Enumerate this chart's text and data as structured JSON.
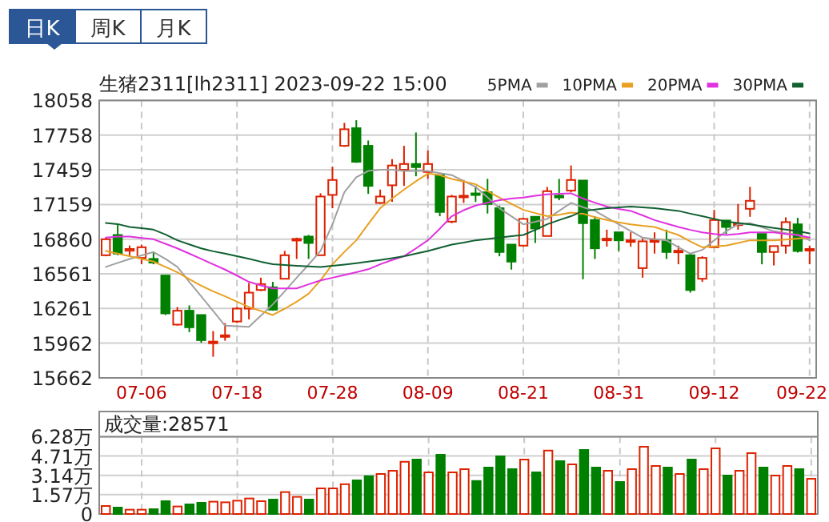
{
  "chart_data": [
    {
      "type": "candlestick",
      "title": "生猪2311[lh2311] 2023-09-22 15:00",
      "annotations": [
        "日K",
        "周K",
        "月K"
      ],
      "categories": [
        null,
        null,
        null,
        "07-06",
        null,
        null,
        null,
        null,
        null,
        null,
        null,
        "07-18",
        null,
        null,
        null,
        null,
        null,
        null,
        null,
        "07-28",
        null,
        null,
        null,
        null,
        null,
        null,
        null,
        "08-09",
        null,
        null,
        null,
        null,
        null,
        null,
        null,
        "08-21",
        null,
        null,
        null,
        null,
        null,
        null,
        null,
        "08-31",
        null,
        null,
        null,
        null,
        null,
        null,
        null,
        "09-12",
        null,
        null,
        null,
        null,
        null,
        null,
        null,
        "09-22"
      ],
      "ohlc": [
        [
          16721,
          16873,
          16712,
          16859
        ],
        [
          16896,
          16988,
          16721,
          16735
        ],
        [
          16760,
          16805,
          16720,
          16775
        ],
        [
          16698,
          16813,
          16643,
          16790
        ],
        [
          16689,
          16749,
          16643,
          16657
        ],
        [
          16546,
          16546,
          16205,
          16219
        ],
        [
          16122,
          16274,
          16113,
          16242
        ],
        [
          16242,
          16288,
          16057,
          16099
        ],
        [
          16205,
          16205,
          15965,
          15988
        ],
        [
          15965,
          16066,
          15845,
          15975
        ],
        [
          16020,
          16135,
          15983,
          16030
        ],
        [
          16149,
          16274,
          16136,
          16260
        ],
        [
          16260,
          16481,
          16168,
          16398
        ],
        [
          16421,
          16527,
          16412,
          16472
        ],
        [
          16444,
          16491,
          16242,
          16251
        ],
        [
          16518,
          16758,
          16518,
          16721
        ],
        [
          16850,
          16873,
          16689,
          16862
        ],
        [
          16882,
          16896,
          16689,
          16827
        ],
        [
          16721,
          17256,
          16721,
          17228
        ],
        [
          17242,
          17486,
          17127,
          17371
        ],
        [
          17666,
          17864,
          17657,
          17809
        ],
        [
          17818,
          17887,
          17519,
          17528
        ],
        [
          17666,
          17712,
          17251,
          17320
        ],
        [
          17173,
          17288,
          17164,
          17228
        ],
        [
          17325,
          17551,
          17182,
          17496
        ],
        [
          17459,
          17666,
          17320,
          17509
        ],
        [
          17509,
          17781,
          17403,
          17482
        ],
        [
          17440,
          17625,
          17380,
          17509
        ],
        [
          17413,
          17413,
          17058,
          17095
        ],
        [
          17011,
          17242,
          16998,
          17228
        ],
        [
          17225,
          17371,
          17173,
          17235
        ],
        [
          17255,
          17320,
          17182,
          17245
        ],
        [
          17265,
          17380,
          17081,
          17164
        ],
        [
          17127,
          17150,
          16712,
          16749
        ],
        [
          16813,
          16813,
          16597,
          16666
        ],
        [
          16804,
          17044,
          16795,
          17035
        ],
        [
          17053,
          17053,
          16827,
          16952
        ],
        [
          16887,
          17311,
          16887,
          17274
        ],
        [
          17235,
          17380,
          17196,
          17220
        ],
        [
          17279,
          17496,
          17265,
          17371
        ],
        [
          17366,
          17366,
          16514,
          16998
        ],
        [
          17025,
          17058,
          16689,
          16781
        ],
        [
          16855,
          16942,
          16795,
          16864
        ],
        [
          16919,
          16919,
          16758,
          16850
        ],
        [
          16840,
          16919,
          16795,
          16850
        ],
        [
          16610,
          16864,
          16527,
          16841
        ],
        [
          16840,
          16919,
          16735,
          16850
        ],
        [
          16850,
          16942,
          16689,
          16749
        ],
        [
          16750,
          16804,
          16643,
          16760
        ],
        [
          16721,
          16735,
          16398,
          16421
        ],
        [
          16518,
          16712,
          16491,
          16698
        ],
        [
          16790,
          17113,
          16790,
          17025
        ],
        [
          17021,
          17021,
          16905,
          16965
        ],
        [
          16985,
          17164,
          16942,
          16995
        ],
        [
          17122,
          17311,
          17053,
          17191
        ],
        [
          16905,
          16905,
          16643,
          16749
        ],
        [
          16749,
          16800,
          16633,
          16800
        ],
        [
          16804,
          17048,
          16735,
          17007
        ],
        [
          16988,
          17044,
          16744,
          16758
        ],
        [
          16765,
          16804,
          16643,
          16775
        ]
      ],
      "colors": [
        "#dd2200",
        "#008000",
        "#dd2200",
        "#dd2200",
        "#008000",
        "#008000",
        "#dd2200",
        "#008000",
        "#008000",
        "#dd2200",
        "#dd2200",
        "#dd2200",
        "#dd2200",
        "#dd2200",
        "#008000",
        "#dd2200",
        "#dd2200",
        "#008000",
        "#dd2200",
        "#dd2200",
        "#dd2200",
        "#008000",
        "#008000",
        "#dd2200",
        "#dd2200",
        "#dd2200",
        "#008000",
        "#dd2200",
        "#008000",
        "#dd2200",
        "#dd2200",
        "#008000",
        "#008000",
        "#008000",
        "#008000",
        "#dd2200",
        "#008000",
        "#dd2200",
        "#008000",
        "#dd2200",
        "#008000",
        "#008000",
        "#dd2200",
        "#008000",
        "#dd2200",
        "#dd2200",
        "#dd2200",
        "#008000",
        "#dd2200",
        "#008000",
        "#dd2200",
        "#dd2200",
        "#008000",
        "#dd2200",
        "#dd2200",
        "#008000",
        "#dd2200",
        "#dd2200",
        "#008000",
        "#dd2200"
      ],
      "series": [
        {
          "type": "line",
          "name": "5PMA",
          "color": "#a0a0a0",
          "values": [
            16620,
            16655,
            16689,
            16720,
            16749,
            16690,
            16620,
            16490,
            16366,
            16240,
            16113,
            16108,
            16103,
            16200,
            16297,
            16410,
            16527,
            16640,
            16758,
            16988,
            17265,
            17394,
            17449,
            17459,
            17459,
            17449,
            17449,
            17449,
            17430,
            17413,
            17362,
            17311,
            17220,
            17127,
            17058,
            16988,
            17010,
            17035,
            17104,
            17173,
            17136,
            17104,
            17046,
            16988,
            16930,
            16873,
            16860,
            16850,
            16790,
            16735,
            16767,
            16850,
            16928,
            16988,
            16998,
            16963,
            16928,
            16912,
            16896,
            16850
          ]
        },
        {
          "type": "line",
          "name": "10PMA",
          "color": "#e8a020",
          "values": [
            16758,
            16735,
            16712,
            16690,
            16666,
            16620,
            16574,
            16515,
            16458,
            16410,
            16366,
            16320,
            16274,
            16240,
            16205,
            16260,
            16320,
            16389,
            16504,
            16643,
            16750,
            16850,
            16990,
            17127,
            17210,
            17288,
            17360,
            17426,
            17413,
            17380,
            17357,
            17334,
            17276,
            17219,
            17165,
            17113,
            17085,
            17058,
            17070,
            17090,
            17080,
            17050,
            17025,
            17005,
            16988,
            16975,
            16965,
            16930,
            16896,
            16840,
            16790,
            16797,
            16804,
            16827,
            16850,
            16850,
            16850,
            16857,
            16864,
            16873
          ]
        },
        {
          "type": "line",
          "name": "20PMA",
          "color": "#e030e0",
          "values": [
            16873,
            16882,
            16882,
            16870,
            16859,
            16820,
            16780,
            16735,
            16689,
            16643,
            16597,
            16545,
            16491,
            16460,
            16435,
            16435,
            16435,
            16470,
            16504,
            16527,
            16550,
            16574,
            16600,
            16643,
            16680,
            16712,
            16780,
            16850,
            16950,
            17058,
            17110,
            17150,
            17175,
            17196,
            17210,
            17219,
            17235,
            17247,
            17252,
            17256,
            17210,
            17175,
            17141,
            17120,
            17104,
            17065,
            17025,
            16995,
            16965,
            16940,
            16919,
            16905,
            16896,
            16905,
            16919,
            16919,
            16919,
            16905,
            16896,
            16873
          ]
        },
        {
          "type": "line",
          "name": "30PMA",
          "color": "#106030",
          "values": [
            17000,
            16990,
            16965,
            16955,
            16942,
            16900,
            16850,
            16815,
            16780,
            16755,
            16735,
            16712,
            16690,
            16665,
            16643,
            16636,
            16630,
            16625,
            16620,
            16630,
            16640,
            16652,
            16666,
            16680,
            16695,
            16712,
            16735,
            16758,
            16785,
            16813,
            16830,
            16850,
            16862,
            16873,
            16885,
            16896,
            16940,
            16988,
            17025,
            17058,
            17104,
            17115,
            17127,
            17134,
            17141,
            17134,
            17127,
            17115,
            17104,
            17080,
            17058,
            17035,
            17011,
            17000,
            16988,
            16972,
            16956,
            16942,
            16928,
            16910
          ]
        }
      ],
      "ylim": [
        15662,
        18058
      ],
      "yticks": [
        15662,
        15962,
        16261,
        16561,
        16860,
        17159,
        17459,
        17758,
        18058
      ],
      "grid": true,
      "legend": "top right"
    },
    {
      "type": "bar",
      "annotations": [
        "成交量:28571"
      ],
      "categories": [
        null,
        null,
        null,
        null,
        null,
        null,
        null,
        null,
        null,
        null,
        null,
        null,
        null,
        null,
        null,
        null,
        null,
        null,
        null,
        null,
        null,
        null,
        null,
        null,
        null,
        null,
        null,
        null,
        null,
        null,
        null,
        null,
        null,
        null,
        null,
        null,
        null,
        null,
        null,
        null,
        null,
        null,
        null,
        null,
        null,
        null,
        null,
        null,
        null,
        null,
        null,
        null,
        null,
        null,
        null,
        null,
        null,
        null,
        null,
        null
      ],
      "values": [
        0.65,
        0.52,
        0.35,
        0.35,
        0.39,
        1.04,
        0.61,
        0.78,
        0.91,
        1.0,
        0.95,
        1.08,
        1.26,
        1.04,
        1.17,
        1.78,
        1.39,
        1.17,
        2.08,
        2.08,
        2.42,
        2.73,
        3.07,
        3.25,
        3.51,
        4.24,
        4.42,
        3.38,
        4.81,
        3.38,
        3.64,
        2.68,
        3.77,
        4.68,
        3.64,
        4.42,
        3.38,
        5.15,
        4.29,
        4.03,
        5.2,
        3.77,
        3.51,
        2.6,
        3.64,
        5.46,
        3.9,
        3.77,
        3.25,
        4.42,
        3.64,
        5.33,
        3.12,
        3.51,
        4.94,
        3.77,
        3.12,
        3.9,
        3.64,
        2.8571
      ],
      "colors": [
        "#dd2200",
        "#008000",
        "#dd2200",
        "#dd2200",
        "#008000",
        "#008000",
        "#dd2200",
        "#008000",
        "#008000",
        "#dd2200",
        "#dd2200",
        "#dd2200",
        "#dd2200",
        "#dd2200",
        "#008000",
        "#dd2200",
        "#dd2200",
        "#008000",
        "#dd2200",
        "#dd2200",
        "#dd2200",
        "#008000",
        "#008000",
        "#dd2200",
        "#dd2200",
        "#dd2200",
        "#008000",
        "#dd2200",
        "#008000",
        "#dd2200",
        "#dd2200",
        "#008000",
        "#008000",
        "#008000",
        "#008000",
        "#dd2200",
        "#008000",
        "#dd2200",
        "#008000",
        "#dd2200",
        "#008000",
        "#008000",
        "#dd2200",
        "#008000",
        "#dd2200",
        "#dd2200",
        "#dd2200",
        "#008000",
        "#dd2200",
        "#008000",
        "#dd2200",
        "#dd2200",
        "#008000",
        "#dd2200",
        "#dd2200",
        "#008000",
        "#dd2200",
        "#dd2200",
        "#008000",
        "#dd2200"
      ],
      "ylim": [
        0,
        6.28
      ],
      "yticks": [
        0,
        {
          "value": 1.57,
          "label": "1.57万"
        },
        {
          "value": 3.14,
          "label": "3.14万"
        },
        {
          "value": 4.71,
          "label": "4.71万"
        },
        {
          "value": 6.28,
          "label": "6.28万"
        }
      ],
      "grid": true,
      "tick_labels": "y"
    }
  ]
}
